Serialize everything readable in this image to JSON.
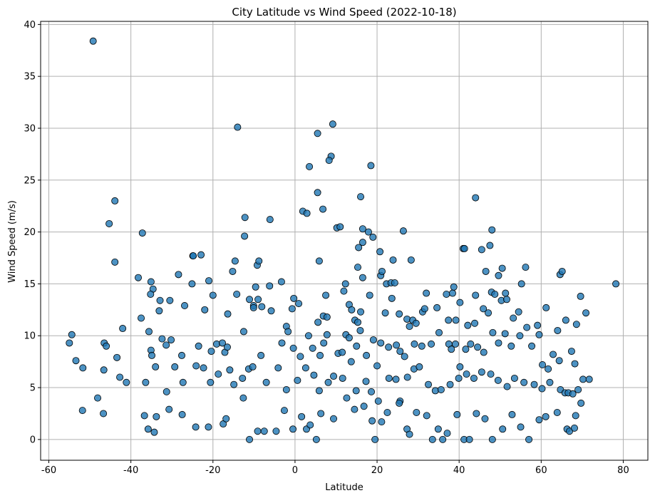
{
  "chart_data": {
    "type": "scatter",
    "title": "City Latitude vs Wind Speed (2022-10-18)",
    "xlabel": "Latitude",
    "ylabel": "Wind Speed (m/s)",
    "xlim": [
      -62,
      86
    ],
    "ylim": [
      -2,
      40.3
    ],
    "xticks": [
      -60,
      -40,
      -20,
      0,
      20,
      40,
      60,
      80
    ],
    "yticks": [
      0,
      5,
      10,
      15,
      20,
      25,
      30,
      35,
      40
    ],
    "grid": true,
    "marker": {
      "fill": "#1f77b4",
      "fill_opacity": 0.8,
      "edge": "#000000"
    },
    "points": [
      [
        -49.2,
        38.4
      ],
      [
        -14.0,
        30.1
      ],
      [
        5.5,
        29.5
      ],
      [
        9.2,
        30.4
      ],
      [
        8.8,
        27.3
      ],
      [
        8.3,
        26.9
      ],
      [
        3.5,
        26.3
      ],
      [
        18.5,
        26.4
      ],
      [
        16.0,
        23.4
      ],
      [
        5.5,
        23.8
      ],
      [
        -43.9,
        23.0
      ],
      [
        44.0,
        23.3
      ],
      [
        6.8,
        22.2
      ],
      [
        -45.3,
        20.8
      ],
      [
        -37.2,
        19.9
      ],
      [
        -6.1,
        21.2
      ],
      [
        -12.2,
        21.4
      ],
      [
        1.9,
        22.0
      ],
      [
        2.9,
        21.8
      ],
      [
        10.2,
        20.4
      ],
      [
        11.0,
        20.5
      ],
      [
        16.5,
        20.3
      ],
      [
        19.0,
        19.5
      ],
      [
        26.4,
        20.1
      ],
      [
        47.5,
        18.7
      ],
      [
        48.0,
        20.2
      ],
      [
        41.0,
        18.4
      ],
      [
        41.3,
        18.4
      ],
      [
        45.5,
        18.3
      ],
      [
        -12.3,
        19.6
      ],
      [
        -24.9,
        17.7
      ],
      [
        -24.8,
        17.7
      ],
      [
        -22.9,
        17.8
      ],
      [
        -43.9,
        17.1
      ],
      [
        -14.6,
        17.2
      ],
      [
        -9.2,
        16.8
      ],
      [
        -8.8,
        17.2
      ],
      [
        5.9,
        17.2
      ],
      [
        15.5,
        18.5
      ],
      [
        16.5,
        19.0
      ],
      [
        17.9,
        20.0
      ],
      [
        20.7,
        18.1
      ],
      [
        23.9,
        17.3
      ],
      [
        28.3,
        17.3
      ],
      [
        -28.4,
        15.9
      ],
      [
        -15.2,
        16.2
      ],
      [
        -9.6,
        14.7
      ],
      [
        -6.2,
        14.8
      ],
      [
        -21.0,
        15.3
      ],
      [
        -25.1,
        15.0
      ],
      [
        -38.2,
        15.6
      ],
      [
        -35.1,
        15.2
      ],
      [
        -3.3,
        15.2
      ],
      [
        12.3,
        15.0
      ],
      [
        15.3,
        16.6
      ],
      [
        16.5,
        15.6
      ],
      [
        20.9,
        15.8
      ],
      [
        21.2,
        16.2
      ],
      [
        22.3,
        15.0
      ],
      [
        23.4,
        15.1
      ],
      [
        24.3,
        15.1
      ],
      [
        38.4,
        14.1
      ],
      [
        38.7,
        14.7
      ],
      [
        44.0,
        13.9
      ],
      [
        46.5,
        16.2
      ],
      [
        47.9,
        14.2
      ],
      [
        49.6,
        15.8
      ],
      [
        50.5,
        16.5
      ],
      [
        51.3,
        14.1
      ],
      [
        55.2,
        15.0
      ],
      [
        56.2,
        16.6
      ],
      [
        64.6,
        15.9
      ],
      [
        65.1,
        16.2
      ],
      [
        78.2,
        15.0
      ],
      [
        -32.9,
        13.4
      ],
      [
        -30.5,
        13.4
      ],
      [
        -20.0,
        13.9
      ],
      [
        -14.2,
        14.0
      ],
      [
        -9.0,
        13.5
      ],
      [
        -10.1,
        12.9
      ],
      [
        -10.1,
        12.7
      ],
      [
        -16.4,
        12.1
      ],
      [
        -22.0,
        12.5
      ],
      [
        -26.9,
        12.9
      ],
      [
        -34.6,
        14.5
      ],
      [
        -35.2,
        14.0
      ],
      [
        -35.6,
        10.4
      ],
      [
        -37.5,
        11.7
      ],
      [
        -33.1,
        12.4
      ],
      [
        -42.0,
        10.7
      ],
      [
        -12.5,
        10.4
      ],
      [
        -11.1,
        13.5
      ],
      [
        -8.1,
        12.8
      ],
      [
        -5.8,
        12.4
      ],
      [
        -2.1,
        10.9
      ],
      [
        -0.7,
        12.6
      ],
      [
        -0.3,
        13.6
      ],
      [
        0.9,
        13.1
      ],
      [
        5.6,
        11.3
      ],
      [
        6.9,
        11.9
      ],
      [
        7.8,
        11.8
      ],
      [
        7.5,
        13.9
      ],
      [
        11.9,
        14.3
      ],
      [
        13.2,
        13.0
      ],
      [
        13.8,
        12.5
      ],
      [
        14.6,
        11.5
      ],
      [
        15.3,
        11.3
      ],
      [
        16.0,
        12.3
      ],
      [
        18.2,
        13.9
      ],
      [
        22.0,
        12.2
      ],
      [
        23.6,
        13.6
      ],
      [
        25.4,
        12.1
      ],
      [
        27.3,
        11.6
      ],
      [
        28.7,
        11.5
      ],
      [
        29.5,
        11.2
      ],
      [
        31.1,
        12.3
      ],
      [
        31.6,
        12.6
      ],
      [
        32.0,
        14.1
      ],
      [
        34.6,
        12.7
      ],
      [
        36.9,
        14.0
      ],
      [
        37.4,
        11.5
      ],
      [
        39.2,
        11.5
      ],
      [
        40.2,
        13.2
      ],
      [
        42.1,
        11.0
      ],
      [
        43.8,
        11.2
      ],
      [
        45.9,
        12.6
      ],
      [
        47.1,
        12.2
      ],
      [
        48.7,
        14.0
      ],
      [
        50.3,
        13.4
      ],
      [
        51.6,
        13.5
      ],
      [
        53.2,
        11.7
      ],
      [
        54.5,
        12.3
      ],
      [
        56.5,
        10.8
      ],
      [
        59.1,
        11.0
      ],
      [
        61.2,
        12.7
      ],
      [
        64.0,
        10.5
      ],
      [
        66.0,
        11.5
      ],
      [
        68.6,
        11.1
      ],
      [
        69.6,
        13.8
      ],
      [
        70.9,
        12.2
      ],
      [
        -54.4,
        10.1
      ],
      [
        -46.5,
        9.3
      ],
      [
        -46.0,
        9.0
      ],
      [
        -43.4,
        7.9
      ],
      [
        -35.1,
        8.6
      ],
      [
        -34.9,
        8.1
      ],
      [
        -32.4,
        9.7
      ],
      [
        -31.4,
        9.1
      ],
      [
        -30.2,
        9.6
      ],
      [
        -27.6,
        8.1
      ],
      [
        -23.5,
        9.0
      ],
      [
        -20.4,
        8.5
      ],
      [
        -19.1,
        9.2
      ],
      [
        -17.7,
        9.3
      ],
      [
        -17.1,
        8.4
      ],
      [
        -16.5,
        8.9
      ],
      [
        -15.9,
        6.7
      ],
      [
        -12.8,
        5.9
      ],
      [
        -11.3,
        6.8
      ],
      [
        -8.3,
        8.1
      ],
      [
        -3.2,
        9.3
      ],
      [
        -1.7,
        10.4
      ],
      [
        -0.4,
        8.8
      ],
      [
        1.3,
        8.0
      ],
      [
        3.3,
        10.0
      ],
      [
        4.3,
        8.8
      ],
      [
        6.1,
        8.1
      ],
      [
        7.0,
        9.3
      ],
      [
        7.8,
        10.1
      ],
      [
        10.5,
        8.3
      ],
      [
        11.5,
        8.4
      ],
      [
        12.4,
        10.1
      ],
      [
        13.2,
        9.8
      ],
      [
        15.0,
        9.0
      ],
      [
        15.9,
        10.5
      ],
      [
        17.4,
        8.1
      ],
      [
        19.1,
        9.6
      ],
      [
        20.0,
        7.1
      ],
      [
        20.9,
        9.3
      ],
      [
        22.8,
        8.9
      ],
      [
        24.7,
        9.1
      ],
      [
        25.6,
        8.5
      ],
      [
        26.7,
        8.0
      ],
      [
        27.9,
        10.9
      ],
      [
        29.1,
        9.2
      ],
      [
        30.9,
        9.0
      ],
      [
        33.2,
        9.2
      ],
      [
        35.1,
        10.3
      ],
      [
        37.5,
        9.2
      ],
      [
        38.1,
        8.7
      ],
      [
        39.1,
        9.2
      ],
      [
        40.2,
        7.0
      ],
      [
        41.6,
        8.7
      ],
      [
        42.8,
        9.2
      ],
      [
        44.5,
        8.9
      ],
      [
        46.0,
        8.4
      ],
      [
        48.2,
        10.3
      ],
      [
        49.6,
        9.3
      ],
      [
        51.2,
        10.2
      ],
      [
        52.7,
        9.0
      ],
      [
        54.8,
        10.0
      ],
      [
        57.7,
        9.0
      ],
      [
        59.5,
        10.1
      ],
      [
        60.3,
        7.2
      ],
      [
        61.7,
        6.8
      ],
      [
        62.9,
        8.2
      ],
      [
        64.4,
        7.6
      ],
      [
        67.4,
        8.5
      ],
      [
        68.2,
        7.3
      ],
      [
        70.2,
        5.8
      ],
      [
        -55.0,
        9.3
      ],
      [
        -53.4,
        7.6
      ],
      [
        -51.7,
        6.9
      ],
      [
        -48.1,
        4.0
      ],
      [
        -46.6,
        6.7
      ],
      [
        -42.7,
        6.0
      ],
      [
        -41.1,
        5.5
      ],
      [
        -36.4,
        5.5
      ],
      [
        -34.0,
        7.0
      ],
      [
        -31.3,
        4.6
      ],
      [
        -29.3,
        7.0
      ],
      [
        -27.3,
        5.5
      ],
      [
        -24.1,
        7.1
      ],
      [
        -22.3,
        6.9
      ],
      [
        -20.6,
        5.5
      ],
      [
        -18.7,
        6.3
      ],
      [
        -14.9,
        5.3
      ],
      [
        -12.6,
        4.0
      ],
      [
        -10.3,
        7.0
      ],
      [
        -7.0,
        5.5
      ],
      [
        -4.1,
        6.9
      ],
      [
        -2.1,
        4.8
      ],
      [
        0.6,
        5.7
      ],
      [
        2.6,
        6.9
      ],
      [
        4.6,
        6.2
      ],
      [
        5.9,
        4.7
      ],
      [
        8.1,
        5.5
      ],
      [
        9.4,
        6.1
      ],
      [
        11.6,
        5.9
      ],
      [
        13.7,
        7.5
      ],
      [
        14.9,
        4.7
      ],
      [
        17.3,
        5.6
      ],
      [
        18.6,
        4.6
      ],
      [
        20.3,
        3.7
      ],
      [
        22.9,
        5.9
      ],
      [
        24.6,
        5.8
      ],
      [
        25.6,
        3.7
      ],
      [
        27.4,
        6.0
      ],
      [
        29.0,
        6.8
      ],
      [
        30.3,
        7.0
      ],
      [
        32.5,
        5.3
      ],
      [
        34.2,
        4.7
      ],
      [
        35.6,
        4.8
      ],
      [
        37.8,
        5.3
      ],
      [
        39.9,
        5.9
      ],
      [
        41.8,
        6.3
      ],
      [
        43.6,
        5.9
      ],
      [
        45.5,
        6.5
      ],
      [
        47.7,
        6.3
      ],
      [
        49.5,
        5.7
      ],
      [
        51.7,
        5.1
      ],
      [
        53.5,
        5.9
      ],
      [
        55.8,
        5.5
      ],
      [
        58.3,
        5.3
      ],
      [
        60.2,
        4.9
      ],
      [
        62.1,
        5.5
      ],
      [
        64.7,
        4.8
      ],
      [
        65.8,
        4.5
      ],
      [
        66.6,
        4.5
      ],
      [
        67.7,
        4.4
      ],
      [
        69.0,
        4.8
      ],
      [
        71.7,
        5.8
      ],
      [
        -51.8,
        2.8
      ],
      [
        -46.7,
        2.5
      ],
      [
        -36.7,
        2.3
      ],
      [
        -35.8,
        1.0
      ],
      [
        -34.3,
        0.7
      ],
      [
        -33.8,
        2.2
      ],
      [
        -30.7,
        2.9
      ],
      [
        -27.5,
        2.4
      ],
      [
        -24.2,
        1.2
      ],
      [
        -21.1,
        1.2
      ],
      [
        -17.5,
        1.5
      ],
      [
        -16.8,
        2.0
      ],
      [
        -11.1,
        0.0
      ],
      [
        -9.1,
        0.8
      ],
      [
        -7.5,
        0.8
      ],
      [
        -4.6,
        0.8
      ],
      [
        -2.6,
        2.8
      ],
      [
        -0.5,
        1.0
      ],
      [
        1.6,
        2.2
      ],
      [
        2.8,
        1.0
      ],
      [
        3.7,
        1.4
      ],
      [
        5.2,
        0.0
      ],
      [
        6.3,
        2.5
      ],
      [
        9.4,
        2.0
      ],
      [
        12.6,
        4.0
      ],
      [
        14.5,
        2.9
      ],
      [
        16.8,
        3.2
      ],
      [
        18.8,
        1.8
      ],
      [
        19.5,
        0.0
      ],
      [
        21.1,
        1.7
      ],
      [
        22.5,
        2.6
      ],
      [
        25.4,
        3.5
      ],
      [
        27.3,
        1.0
      ],
      [
        27.9,
        0.5
      ],
      [
        29.6,
        2.6
      ],
      [
        32.1,
        2.3
      ],
      [
        33.5,
        0.0
      ],
      [
        34.9,
        1.0
      ],
      [
        36.0,
        0.0
      ],
      [
        37.1,
        0.6
      ],
      [
        39.5,
        2.4
      ],
      [
        41.2,
        0.0
      ],
      [
        42.5,
        0.0
      ],
      [
        44.2,
        2.5
      ],
      [
        46.3,
        2.0
      ],
      [
        48.1,
        0.0
      ],
      [
        50.6,
        1.0
      ],
      [
        52.9,
        2.4
      ],
      [
        55.0,
        1.2
      ],
      [
        57.0,
        0.0
      ],
      [
        59.5,
        1.9
      ],
      [
        61.1,
        2.2
      ],
      [
        63.9,
        2.6
      ],
      [
        66.3,
        1.0
      ],
      [
        66.9,
        0.8
      ],
      [
        68.1,
        1.1
      ],
      [
        68.4,
        2.3
      ],
      [
        69.7,
        3.5
      ]
    ]
  }
}
